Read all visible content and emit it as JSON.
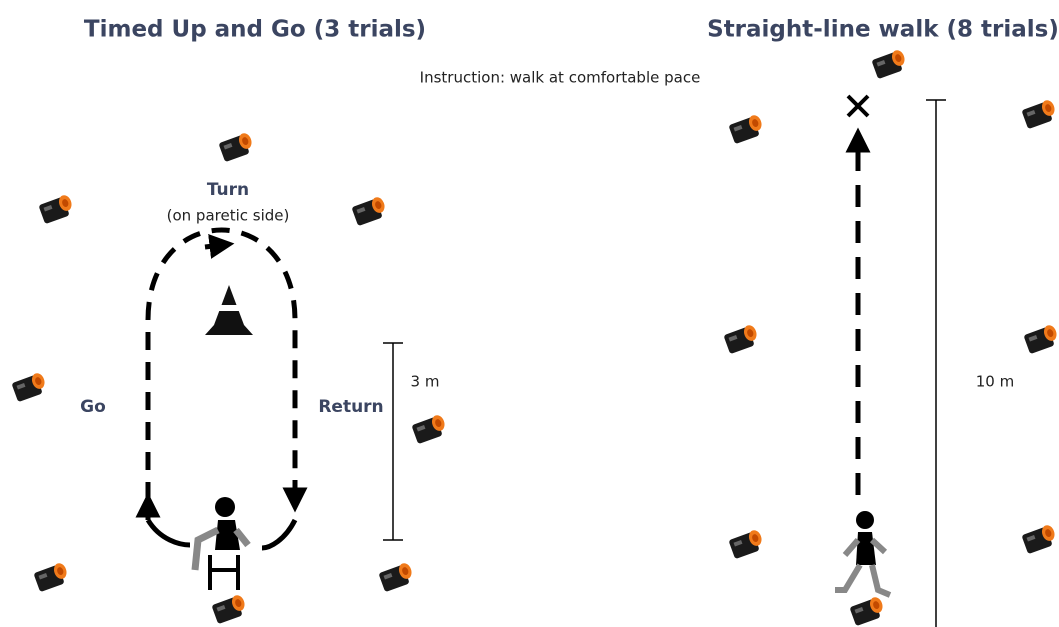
{
  "left": {
    "title": "Timed Up and Go (3 trials)",
    "turn_label": "Turn",
    "turn_note": "(on paretic side)",
    "go_label": "Go",
    "return_label": "Return",
    "distance_label": "3 m"
  },
  "instruction": "Instruction: walk at comfortable pace",
  "right": {
    "title": "Straight-line walk (8 trials)",
    "distance_label": "10 m"
  }
}
